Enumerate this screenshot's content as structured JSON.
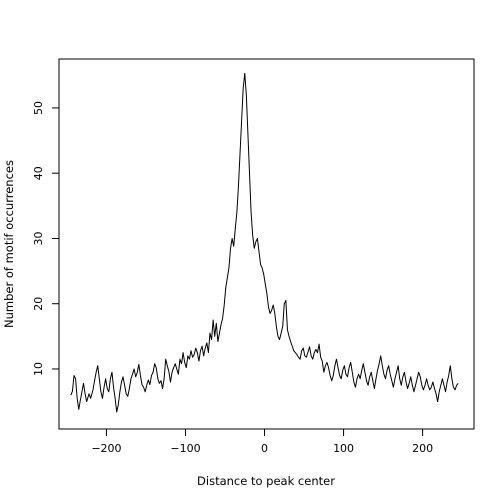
{
  "chart_data": {
    "type": "line",
    "title": "",
    "xlabel": "Distance to peak center",
    "ylabel": "Number of motif occurrences",
    "xlim": [
      -260,
      265
    ],
    "ylim": [
      0.8,
      57.5
    ],
    "xticks": [
      -200,
      -100,
      0,
      100,
      200
    ],
    "xtick_labels": [
      "−200",
      "−100",
      "0",
      "100",
      "200"
    ],
    "yticks": [
      10,
      20,
      30,
      40,
      50
    ],
    "ytick_labels": [
      "10",
      "20",
      "30",
      "40",
      "50"
    ],
    "grid": false,
    "legend": "none",
    "line_color": "#000000",
    "series": [
      {
        "points": [
          [
            -245,
            6
          ],
          [
            -243,
            6.6
          ],
          [
            -241,
            9
          ],
          [
            -239,
            8.5
          ],
          [
            -237,
            5.5
          ],
          [
            -235,
            3.8
          ],
          [
            -233,
            5.2
          ],
          [
            -231,
            6.5
          ],
          [
            -229,
            7.8
          ],
          [
            -227,
            6.2
          ],
          [
            -225,
            5
          ],
          [
            -222,
            6.2
          ],
          [
            -220,
            5.5
          ],
          [
            -217,
            6.8
          ],
          [
            -215,
            8.2
          ],
          [
            -213,
            9.5
          ],
          [
            -211,
            10.5
          ],
          [
            -209,
            8.5
          ],
          [
            -207,
            6.5
          ],
          [
            -205,
            5.5
          ],
          [
            -203,
            7.2
          ],
          [
            -201,
            8.5
          ],
          [
            -199,
            7
          ],
          [
            -197,
            6.5
          ],
          [
            -195,
            8.5
          ],
          [
            -193,
            9.5
          ],
          [
            -191,
            7.2
          ],
          [
            -189,
            5.5
          ],
          [
            -187,
            3.4
          ],
          [
            -185,
            4.5
          ],
          [
            -183,
            6.5
          ],
          [
            -181,
            8
          ],
          [
            -179,
            8.8
          ],
          [
            -177,
            7.5
          ],
          [
            -175,
            6.2
          ],
          [
            -173,
            5.8
          ],
          [
            -171,
            7
          ],
          [
            -169,
            8.5
          ],
          [
            -167,
            9.2
          ],
          [
            -165,
            10
          ],
          [
            -163,
            8.8
          ],
          [
            -161,
            9.5
          ],
          [
            -159,
            10.7
          ],
          [
            -157,
            9
          ],
          [
            -155,
            7.6
          ],
          [
            -153,
            7.2
          ],
          [
            -151,
            6.5
          ],
          [
            -149,
            7.5
          ],
          [
            -147,
            8.3
          ],
          [
            -145,
            7.6
          ],
          [
            -143,
            9
          ],
          [
            -141,
            9.5
          ],
          [
            -139,
            10.8
          ],
          [
            -137,
            10.2
          ],
          [
            -135,
            8.5
          ],
          [
            -133,
            7.8
          ],
          [
            -131,
            8.2
          ],
          [
            -129,
            7
          ],
          [
            -127,
            8.5
          ],
          [
            -125,
            11.5
          ],
          [
            -123,
            10.5
          ],
          [
            -121,
            9.6
          ],
          [
            -119,
            8
          ],
          [
            -117,
            9.5
          ],
          [
            -115,
            10.2
          ],
          [
            -113,
            10.8
          ],
          [
            -111,
            10
          ],
          [
            -109,
            9.2
          ],
          [
            -107,
            11.5
          ],
          [
            -105,
            10.8
          ],
          [
            -103,
            12.5
          ],
          [
            -101,
            11
          ],
          [
            -99,
            10.2
          ],
          [
            -97,
            12
          ],
          [
            -95,
            11.5
          ],
          [
            -93,
            12.8
          ],
          [
            -91,
            11.8
          ],
          [
            -89,
            12.2
          ],
          [
            -87,
            13.2
          ],
          [
            -85,
            12.5
          ],
          [
            -83,
            11.2
          ],
          [
            -81,
            12.8
          ],
          [
            -79,
            13.5
          ],
          [
            -77,
            12
          ],
          [
            -75,
            13.2
          ],
          [
            -73,
            14
          ],
          [
            -71,
            12.5
          ],
          [
            -69,
            15.5
          ],
          [
            -67,
            14.5
          ],
          [
            -65,
            17.5
          ],
          [
            -63,
            15
          ],
          [
            -61,
            17
          ],
          [
            -59,
            14.2
          ],
          [
            -57,
            15.5
          ],
          [
            -55,
            16.8
          ],
          [
            -53,
            17.8
          ],
          [
            -51,
            19.8
          ],
          [
            -49,
            22.5
          ],
          [
            -47,
            24
          ],
          [
            -45,
            25.5
          ],
          [
            -43,
            28.5
          ],
          [
            -41,
            30
          ],
          [
            -39,
            28.8
          ],
          [
            -37,
            31.5
          ],
          [
            -35,
            34
          ],
          [
            -33,
            38
          ],
          [
            -31,
            43
          ],
          [
            -29,
            48
          ],
          [
            -27,
            53
          ],
          [
            -25,
            55.3
          ],
          [
            -23,
            52
          ],
          [
            -21,
            46
          ],
          [
            -19,
            40
          ],
          [
            -17,
            34
          ],
          [
            -15,
            30.5
          ],
          [
            -13,
            28.5
          ],
          [
            -11,
            29.5
          ],
          [
            -9,
            30
          ],
          [
            -7,
            28
          ],
          [
            -5,
            26
          ],
          [
            -3,
            25.5
          ],
          [
            -1,
            24.5
          ],
          [
            1,
            23
          ],
          [
            3,
            21.5
          ],
          [
            5,
            19.5
          ],
          [
            7,
            18.5
          ],
          [
            9,
            19
          ],
          [
            11,
            19.8
          ],
          [
            13,
            18.5
          ],
          [
            15,
            16.5
          ],
          [
            17,
            15
          ],
          [
            19,
            14.5
          ],
          [
            21,
            15.5
          ],
          [
            23,
            16.5
          ],
          [
            25,
            20
          ],
          [
            27,
            20.5
          ],
          [
            29,
            16
          ],
          [
            31,
            15
          ],
          [
            33,
            14.2
          ],
          [
            35,
            13.5
          ],
          [
            37,
            12.8
          ],
          [
            39,
            12.5
          ],
          [
            41,
            12.2
          ],
          [
            43,
            11.8
          ],
          [
            45,
            11.5
          ],
          [
            47,
            12.8
          ],
          [
            49,
            13.2
          ],
          [
            51,
            12
          ],
          [
            53,
            11.8
          ],
          [
            55,
            12.6
          ],
          [
            57,
            13.4
          ],
          [
            59,
            12
          ],
          [
            61,
            11.5
          ],
          [
            63,
            12.5
          ],
          [
            65,
            13
          ],
          [
            67,
            12.5
          ],
          [
            69,
            13.8
          ],
          [
            71,
            11.8
          ],
          [
            73,
            11.2
          ],
          [
            75,
            9.5
          ],
          [
            77,
            10.5
          ],
          [
            79,
            11
          ],
          [
            81,
            10.2
          ],
          [
            83,
            9
          ],
          [
            85,
            8.2
          ],
          [
            87,
            9
          ],
          [
            89,
            10.5
          ],
          [
            91,
            11.5
          ],
          [
            93,
            10.2
          ],
          [
            95,
            9
          ],
          [
            97,
            8.5
          ],
          [
            99,
            9.8
          ],
          [
            101,
            10.5
          ],
          [
            103,
            9.2
          ],
          [
            105,
            8.8
          ],
          [
            107,
            10.2
          ],
          [
            109,
            11
          ],
          [
            111,
            9.5
          ],
          [
            113,
            8
          ],
          [
            115,
            7.2
          ],
          [
            117,
            8.5
          ],
          [
            119,
            9.2
          ],
          [
            121,
            8.5
          ],
          [
            123,
            9.8
          ],
          [
            125,
            10.8
          ],
          [
            127,
            9.5
          ],
          [
            129,
            8.2
          ],
          [
            131,
            7.5
          ],
          [
            133,
            8.8
          ],
          [
            135,
            9.5
          ],
          [
            137,
            8.2
          ],
          [
            139,
            7
          ],
          [
            141,
            8.5
          ],
          [
            143,
            9.8
          ],
          [
            145,
            10.8
          ],
          [
            147,
            12
          ],
          [
            149,
            10.5
          ],
          [
            151,
            9.2
          ],
          [
            153,
            8.5
          ],
          [
            155,
            9.8
          ],
          [
            157,
            10.5
          ],
          [
            159,
            9.2
          ],
          [
            161,
            8.2
          ],
          [
            163,
            7.2
          ],
          [
            165,
            8.5
          ],
          [
            167,
            9.5
          ],
          [
            169,
            10.5
          ],
          [
            171,
            8.5
          ],
          [
            173,
            7.5
          ],
          [
            175,
            8.8
          ],
          [
            177,
            9.5
          ],
          [
            179,
            8
          ],
          [
            181,
            7
          ],
          [
            183,
            7.8
          ],
          [
            185,
            8.8
          ],
          [
            187,
            7.5
          ],
          [
            189,
            6.5
          ],
          [
            191,
            7.5
          ],
          [
            193,
            8.5
          ],
          [
            195,
            9.5
          ],
          [
            197,
            8.8
          ],
          [
            199,
            7.5
          ],
          [
            201,
            6.8
          ],
          [
            203,
            7.5
          ],
          [
            205,
            8.5
          ],
          [
            207,
            7.5
          ],
          [
            209,
            6.8
          ],
          [
            211,
            7.2
          ],
          [
            213,
            8
          ],
          [
            215,
            7
          ],
          [
            217,
            6.2
          ],
          [
            219,
            5
          ],
          [
            221,
            6.5
          ],
          [
            223,
            7.5
          ],
          [
            225,
            8.5
          ],
          [
            227,
            7.5
          ],
          [
            229,
            6.5
          ],
          [
            231,
            8
          ],
          [
            233,
            9
          ],
          [
            235,
            10.5
          ],
          [
            237,
            8.5
          ],
          [
            239,
            7.2
          ],
          [
            241,
            6.8
          ],
          [
            243,
            7.5
          ],
          [
            245,
            7.8
          ]
        ]
      }
    ]
  }
}
